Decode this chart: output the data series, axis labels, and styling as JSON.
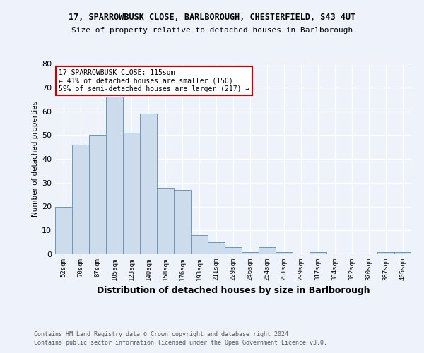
{
  "title1": "17, SPARROWBUSK CLOSE, BARLBOROUGH, CHESTERFIELD, S43 4UT",
  "title2": "Size of property relative to detached houses in Barlborough",
  "xlabel": "Distribution of detached houses by size in Barlborough",
  "ylabel": "Number of detached properties",
  "categories": [
    "52sqm",
    "70sqm",
    "87sqm",
    "105sqm",
    "123sqm",
    "140sqm",
    "158sqm",
    "176sqm",
    "193sqm",
    "211sqm",
    "229sqm",
    "246sqm",
    "264sqm",
    "281sqm",
    "299sqm",
    "317sqm",
    "334sqm",
    "352sqm",
    "370sqm",
    "387sqm",
    "405sqm"
  ],
  "values": [
    20,
    46,
    50,
    66,
    51,
    59,
    28,
    27,
    8,
    5,
    3,
    1,
    3,
    1,
    0,
    1,
    0,
    0,
    0,
    1,
    1
  ],
  "bar_color": "#ccdcec",
  "bar_edge_color": "#6699bb",
  "annotation_text": "17 SPARROWBUSK CLOSE: 115sqm\n← 41% of detached houses are smaller (150)\n59% of semi-detached houses are larger (217) →",
  "annotation_box_color": "#ffffff",
  "annotation_box_edge_color": "#cc0000",
  "ylim": [
    0,
    80
  ],
  "yticks": [
    0,
    10,
    20,
    30,
    40,
    50,
    60,
    70,
    80
  ],
  "footer1": "Contains HM Land Registry data © Crown copyright and database right 2024.",
  "footer2": "Contains public sector information licensed under the Open Government Licence v3.0.",
  "bg_color": "#eef2fa",
  "grid_color": "#ffffff"
}
